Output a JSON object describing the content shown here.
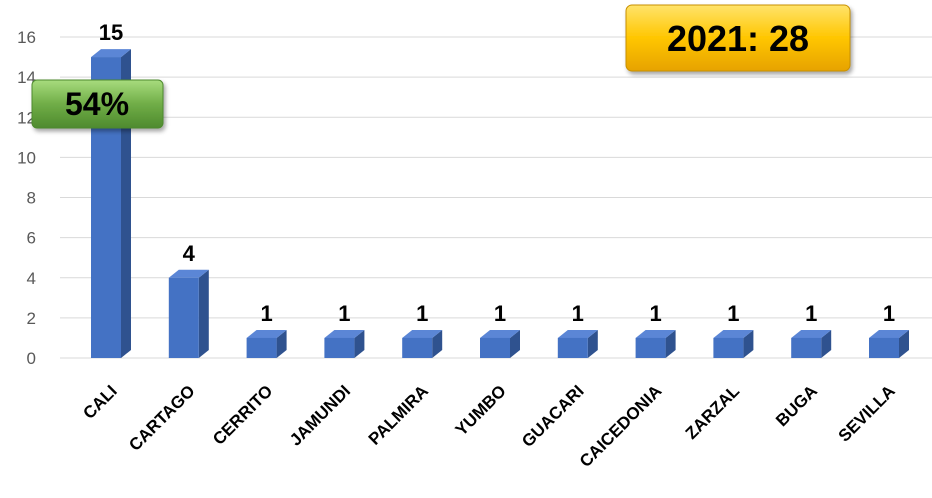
{
  "chart_data": {
    "type": "bar",
    "categories": [
      "CALI",
      "CARTAGO",
      "CERRITO",
      "JAMUNDI",
      "PALMIRA",
      "YUMBO",
      "GUACARI",
      "CAICEDONIA",
      "ZARZAL",
      "BUGA",
      "SEVILLA"
    ],
    "values": [
      15,
      4,
      1,
      1,
      1,
      1,
      1,
      1,
      1,
      1,
      1
    ],
    "data_labels": [
      "15",
      "4",
      "1",
      "1",
      "1",
      "1",
      "1",
      "1",
      "1",
      "1",
      "1"
    ],
    "y_ticks": [
      "0",
      "2",
      "4",
      "6",
      "8",
      "10",
      "12",
      "14",
      "16"
    ],
    "ylim": [
      0,
      16
    ],
    "grid": true,
    "bar_color": "#4472C4",
    "title": "",
    "xlabel": "",
    "ylabel": ""
  },
  "badges": {
    "total": "2021: 28",
    "share": "54%"
  },
  "colors": {
    "total_badge": "#FFC000",
    "share_badge": "#70AD47",
    "grid": "#D9D9D9"
  }
}
